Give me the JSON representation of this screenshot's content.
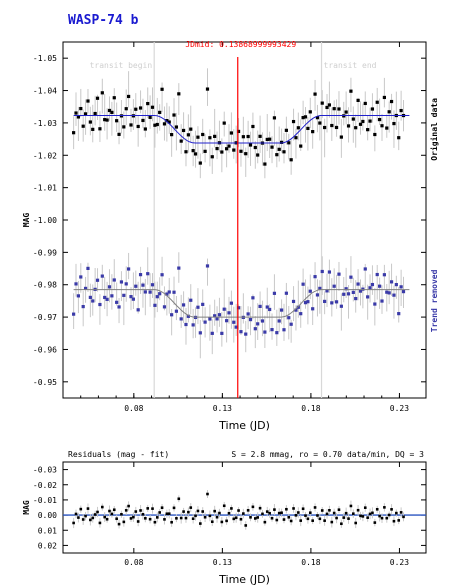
{
  "title": "WASP-74 b",
  "jdmid_label": "JDmid: 0.13868999993429",
  "colors": {
    "title": "#1a1ad0",
    "midline": "#ff0000",
    "original": "#000000",
    "detrended": "#3a3aa8",
    "fit": "#2222cc",
    "errorbar": "#c8c8c8",
    "zero_line": "#2a55c0",
    "transit_line": "#d8d8d8"
  },
  "chart_data": [
    {
      "type": "scatter",
      "name": "main-light-curve",
      "title": "WASP-74 b",
      "xlabel": "Time (JD)",
      "ylabel": "MAG",
      "xlim": [
        0.04,
        0.245
      ],
      "ylim": [
        -1.055,
        -0.945
      ],
      "y_inverted": true,
      "x_ticks": [
        0.08,
        0.13,
        0.18,
        0.23
      ],
      "y_ticks": [
        -1.05,
        -1.04,
        -1.03,
        -1.02,
        -1.01,
        -1.0,
        -0.99,
        -0.98,
        -0.97,
        -0.96,
        -0.95
      ],
      "y_tick_labels": [
        "-1.05",
        "-1.04",
        "-1.03",
        "-1.02",
        "-1.01",
        "-1.00",
        "-0.99",
        "-0.98",
        "-0.97",
        "-0.96",
        "-0.95"
      ],
      "x_tick_labels": [
        "0.08",
        "0.13",
        "0.18",
        "0.23"
      ],
      "right_labels": [
        "Original data",
        "Trend removed"
      ],
      "transit_begin": 0.0915,
      "transit_end": 0.186,
      "jd_mid": 0.13869,
      "annotations": [
        "transit begin",
        "transit end",
        "JDmid: 0.13868999993429"
      ],
      "model": {
        "baseline": 0.0,
        "depth": 0.0085,
        "ingress_start": 0.0915,
        "ingress_end": 0.1145,
        "egress_start": 0.163,
        "egress_end": 0.186
      },
      "series": [
        {
          "name": "Original data",
          "offset": -1.0323
        },
        {
          "name": "Trend removed",
          "offset": -0.9785
        }
      ],
      "residuals": [
        0.006,
        -0.002,
        0.001,
        -0.004,
        0.003,
        0.0,
        -0.005,
        0.002,
        0.004,
        -0.001,
        -0.003,
        0.005,
        -0.006,
        0.001,
        0.003,
        -0.002,
        0.0,
        -0.004,
        0.002,
        0.006,
        -0.001,
        0.004,
        -0.003,
        -0.007,
        0.002,
        0.001,
        -0.002,
        0.005,
        -0.004,
        0.0,
        0.003,
        -0.005,
        0.001,
        -0.003,
        0.004,
        0.002,
        -0.001,
        -0.006,
        0.003,
        0.0,
        -0.002,
        0.005,
        -0.004,
        0.001,
        -0.012,
        0.002,
        -0.003,
        0.004,
        0.0,
        -0.005,
        0.003,
        0.001,
        -0.002,
        0.006,
        -0.004,
        0.002,
        -0.016,
        0.0,
        0.004,
        -0.003,
        0.001,
        -0.002,
        0.005,
        -0.006,
        0.003,
        0.0,
        -0.004,
        0.002,
        0.001,
        -0.003,
        0.004,
        -0.001,
        0.006,
        -0.002,
        0.0,
        -0.005,
        0.003,
        0.002,
        -0.004,
        0.001,
        0.005,
        -0.003,
        -0.001,
        0.002,
        -0.006,
        0.004,
        0.0,
        -0.002,
        0.003,
        -0.005,
        0.001,
        0.006,
        -0.003,
        0.002,
        -0.001,
        0.004,
        -0.004,
        0.0,
        0.003,
        -0.002,
        0.005,
        -0.006,
        0.001,
        0.002,
        -0.003,
        0.004,
        0.0,
        -0.005,
        0.003,
        -0.001,
        0.002,
        -0.004,
        0.006,
        0.001,
        -0.002,
        0.003,
        -0.007,
        0.0,
        0.004,
        -0.003,
        0.002,
        0.001,
        -0.005,
        0.003,
        0.0,
        -0.002,
        0.005,
        -0.004,
        0.001,
        0.003,
        -0.006,
        0.002,
        0.0,
        -0.003,
        0.004,
        -0.001,
        0.005,
        -0.002,
        0.001,
        -0.005
      ]
    },
    {
      "type": "scatter",
      "name": "residuals",
      "title": "Residuals (mag - fit)",
      "stats": "S = 2.8 mmag, ro = 0.70 data/min, DQ = 3",
      "xlabel": "Time (JD)",
      "ylabel": "MAG",
      "xlim": [
        0.04,
        0.245
      ],
      "ylim": [
        -0.035,
        0.025
      ],
      "y_inverted": true,
      "x_ticks": [
        0.08,
        0.13,
        0.18,
        0.23
      ],
      "x_tick_labels": [
        "0.08",
        "0.13",
        "0.18",
        "0.23"
      ],
      "y_ticks": [
        -0.03,
        -0.02,
        -0.01,
        0.0,
        0.01,
        0.02
      ],
      "y_tick_labels": [
        "-0.03",
        "-0.02",
        "-0.01",
        "0.00",
        "0.01",
        "0.02"
      ]
    }
  ]
}
